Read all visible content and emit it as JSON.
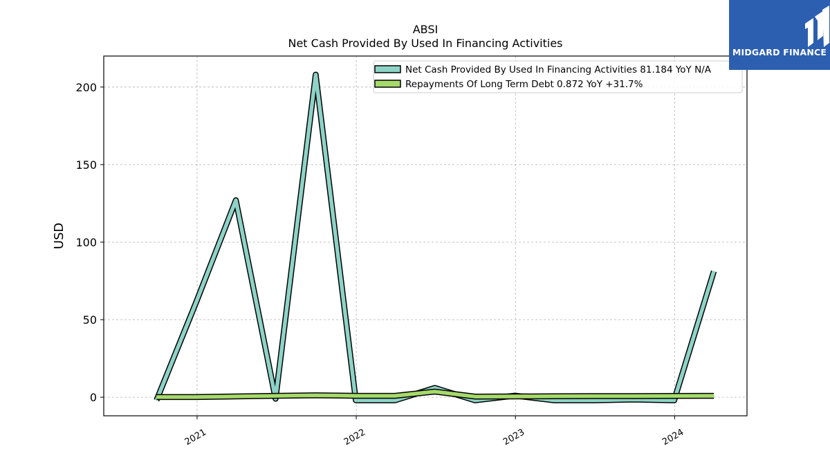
{
  "brand": {
    "name": "MIDGARD FINANCE",
    "bg_color": "#2d5fb0"
  },
  "chart_data": {
    "type": "line",
    "title": "ABSI",
    "subtitle": "Net Cash Provided By Used In Financing Activities",
    "xlabel": "",
    "ylabel": "USD",
    "ylim": [
      -12,
      220
    ],
    "xlim": [
      "2020-06-01",
      "2024-06-15"
    ],
    "x_ticks": [
      "2021",
      "2022",
      "2023",
      "2024"
    ],
    "y_ticks": [
      0,
      50,
      100,
      150,
      200
    ],
    "grid": true,
    "legend_position": "top-right",
    "x": [
      "2020-09-30",
      "2020-12-31",
      "2021-03-31",
      "2021-06-30",
      "2021-09-30",
      "2021-12-31",
      "2022-03-31",
      "2022-06-30",
      "2022-09-30",
      "2022-12-31",
      "2023-03-31",
      "2023-06-30",
      "2023-09-30",
      "2023-12-31",
      "2024-03-31"
    ],
    "series": [
      {
        "name": "Net Cash Provided By Used In Financing Activities",
        "legend_label": "Net Cash Provided By Used In Financing Activities  81.184 YoY N/A",
        "color": "#8dd3c7",
        "values": [
          -2,
          62,
          127,
          -1,
          208,
          -2,
          -2,
          6,
          -2,
          1,
          -2,
          -2,
          -1.5,
          -2,
          81.184
        ]
      },
      {
        "name": "Repayments Of Long Term Debt",
        "legend_label": "Repayments Of Long Term Debt  0.872 YoY +31.7%",
        "color": "#a6d96a",
        "values": [
          0.1,
          0.1,
          0.5,
          0.9,
          1.2,
          0.9,
          0.9,
          3.6,
          0.4,
          0.5,
          0.6,
          0.7,
          0.7,
          0.8,
          0.872
        ]
      }
    ]
  }
}
